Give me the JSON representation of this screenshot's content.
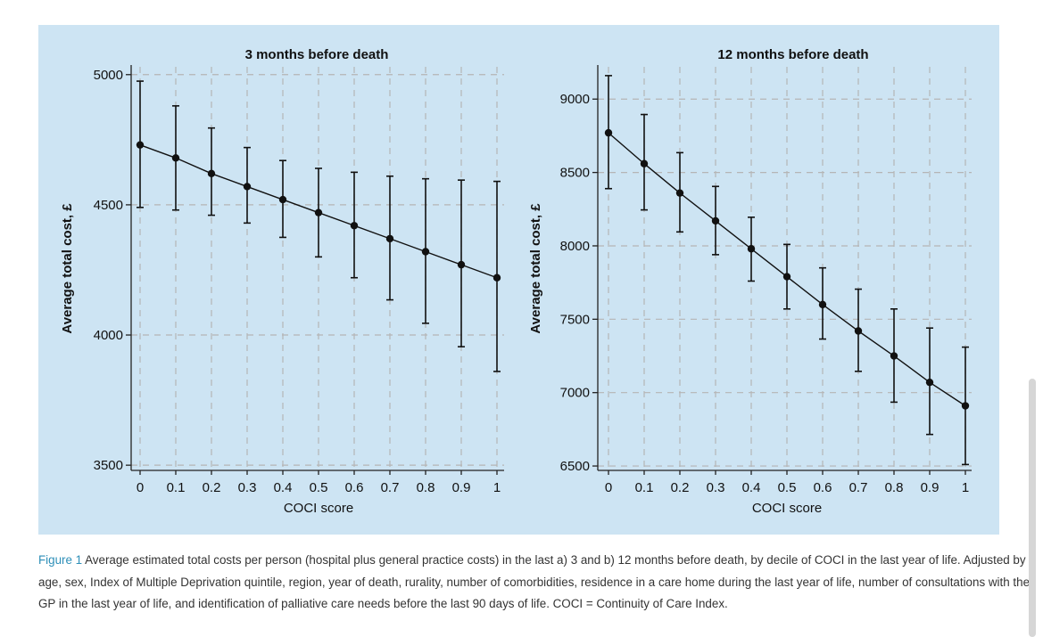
{
  "figure": {
    "panel_color": "#cde4f3",
    "caption_label": "Figure 1",
    "caption_text": " Average estimated total costs per person (hospital plus general practice costs) in the last a) 3 and b) 12 months before death, by decile of COCI in the last year of life. Adjusted by age, sex, Index of Multiple Deprivation quintile, region, year of death, rurality, number of comorbidities, residence in a care home during the last year of life, number of consultations with the GP in the last year of life, and identification of palliative care needs before the last 90 days of life. COCI = Continuity of Care Index.",
    "caption_label_color": "#2e8fb8"
  },
  "chart_data": [
    {
      "type": "line",
      "title": "3 months before death",
      "xlabel": "COCI score",
      "ylabel": "Average total cost, £",
      "x": [
        0,
        0.1,
        0.2,
        0.3,
        0.4,
        0.5,
        0.6,
        0.7,
        0.8,
        0.9,
        1
      ],
      "x_tick_labels": [
        "0",
        "0.1",
        "0.2",
        "0.3",
        "0.4",
        "0.5",
        "0.6",
        "0.7",
        "0.8",
        "0.9",
        "1"
      ],
      "y": [
        4730,
        4680,
        4620,
        4570,
        4520,
        4470,
        4420,
        4370,
        4320,
        4270,
        4220
      ],
      "ci_low": [
        4490,
        4480,
        4460,
        4430,
        4375,
        4300,
        4220,
        4135,
        4045,
        3955,
        3860
      ],
      "ci_high": [
        4975,
        4880,
        4795,
        4720,
        4670,
        4640,
        4625,
        4610,
        4600,
        4595,
        4590
      ],
      "y_ticks": [
        3500,
        4000,
        4500,
        5000
      ],
      "y_tick_labels": [
        "3500",
        "4000",
        "4500",
        "5000"
      ],
      "ylim": [
        3480,
        5030
      ],
      "grid": true,
      "legend": "none"
    },
    {
      "type": "line",
      "title": "12 months before death",
      "xlabel": "COCI score",
      "ylabel": "Average total cost, £",
      "x": [
        0,
        0.1,
        0.2,
        0.3,
        0.4,
        0.5,
        0.6,
        0.7,
        0.8,
        0.9,
        1
      ],
      "x_tick_labels": [
        "0",
        "0.1",
        "0.2",
        "0.3",
        "0.4",
        "0.5",
        "0.6",
        "0.7",
        "0.8",
        "0.9",
        "1"
      ],
      "y": [
        8770,
        8560,
        8360,
        8170,
        7980,
        7790,
        7600,
        7420,
        7250,
        7070,
        6910
      ],
      "ci_low": [
        8390,
        8245,
        8095,
        7940,
        7760,
        7570,
        7365,
        7145,
        6935,
        6715,
        6510
      ],
      "ci_high": [
        9160,
        8895,
        8635,
        8405,
        8195,
        8010,
        7850,
        7705,
        7570,
        7440,
        7310
      ],
      "y_ticks": [
        6500,
        7000,
        7500,
        8000,
        8500,
        9000
      ],
      "y_tick_labels": [
        "6500",
        "7000",
        "7500",
        "8000",
        "8500",
        "9000"
      ],
      "ylim": [
        6470,
        9220
      ],
      "grid": true,
      "legend": "none"
    }
  ]
}
